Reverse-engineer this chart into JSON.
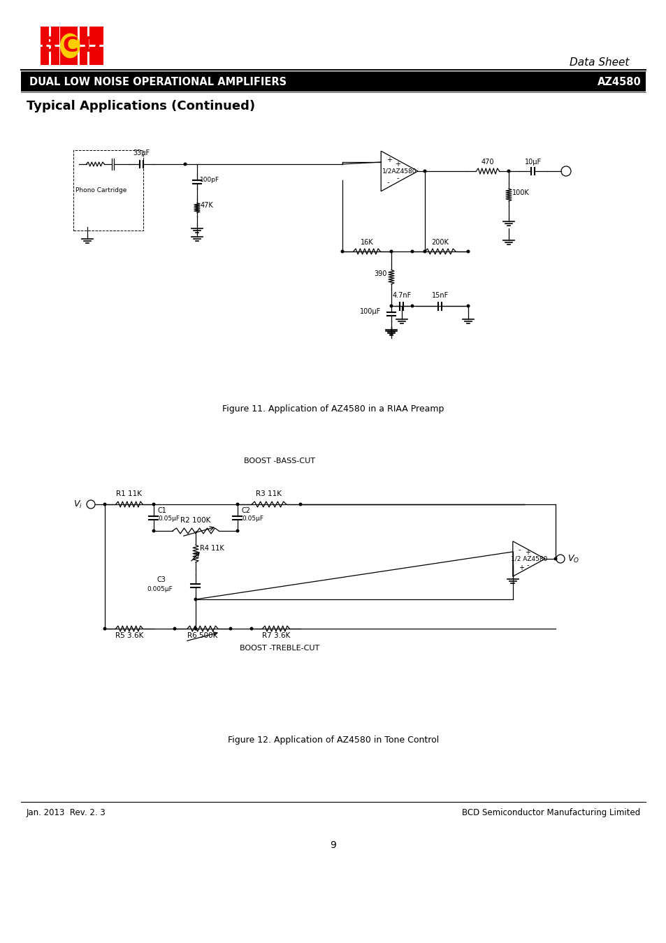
{
  "page_width": 9.54,
  "page_height": 13.5,
  "bg_color": "#ffffff",
  "datasheet_label": "Data Sheet",
  "header_text": "DUAL LOW NOISE OPERATIONAL AMPLIFIERS",
  "header_right_text": "AZ4580",
  "section_title": "Typical Applications (Continued)",
  "fig11_caption": "Figure 11. Application of AZ4580 in a RIAA Preamp",
  "fig12_caption": "Figure 12. Application of AZ4580 in Tone Control",
  "footer_left": "Jan. 2013  Rev. 2. 3",
  "footer_right": "BCD Semiconductor Manufacturing Limited",
  "page_number": "9"
}
